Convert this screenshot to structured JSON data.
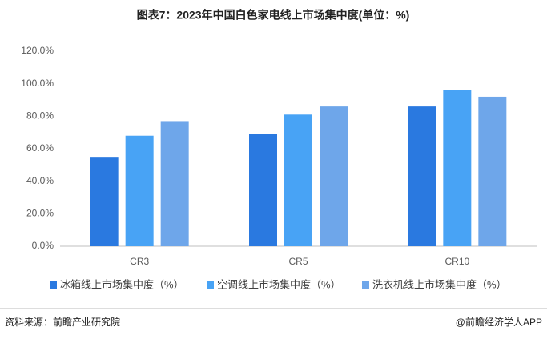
{
  "chart_data": {
    "type": "bar",
    "title": "图表7：2023年中国白色家电线上市场集中度(单位：%)",
    "categories": [
      "CR3",
      "CR5",
      "CR10"
    ],
    "series": [
      {
        "name": "冰箱线上市场集中度（%）",
        "color": "#2a79e0",
        "values": [
          55,
          69,
          86
        ]
      },
      {
        "name": "空调线上市场集中度（%）",
        "color": "#48a3f5",
        "values": [
          68,
          81,
          96
        ]
      },
      {
        "name": "洗衣机线上市场集中度（%）",
        "color": "#6ea6ea",
        "values": [
          77,
          86,
          92
        ]
      }
    ],
    "ylim": [
      0,
      120
    ],
    "yticks": [
      {
        "value": 0,
        "label": "0.0%"
      },
      {
        "value": 20,
        "label": "20.0%"
      },
      {
        "value": 40,
        "label": "40.0%"
      },
      {
        "value": 60,
        "label": "60.0%"
      },
      {
        "value": 80,
        "label": "80.0%"
      },
      {
        "value": 100,
        "label": "100.0%"
      },
      {
        "value": 120,
        "label": "120.0%"
      }
    ],
    "grid": false,
    "source": "资料来源：前瞻产业研究院",
    "credit": "@前瞻经济学人APP"
  }
}
